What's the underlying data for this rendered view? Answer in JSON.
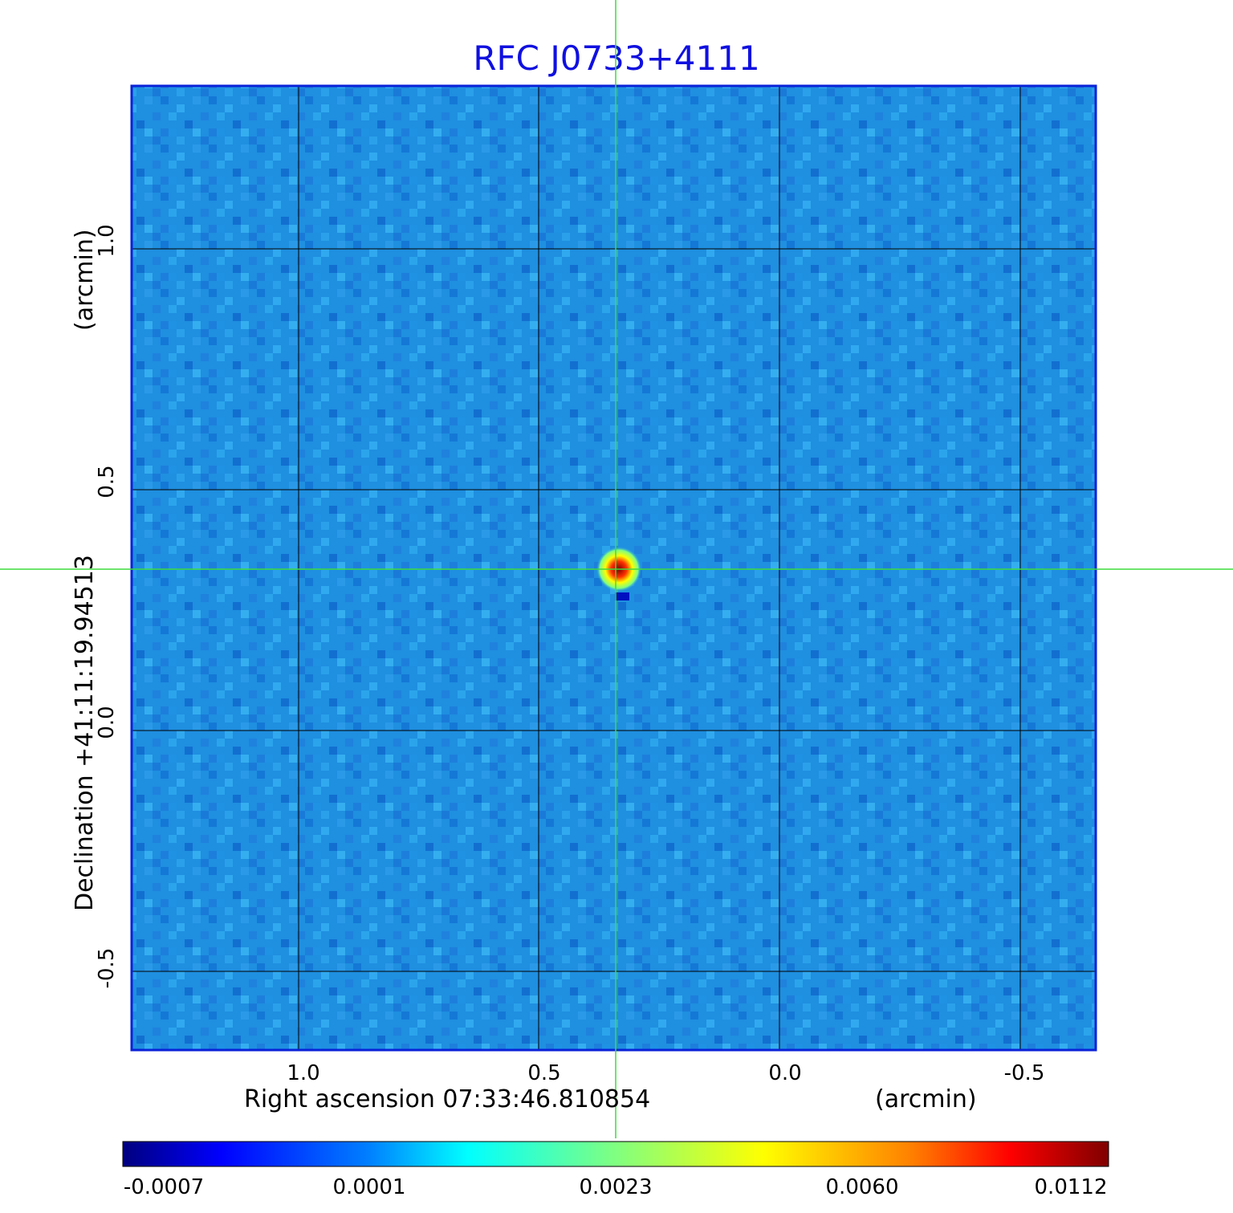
{
  "figure": {
    "title": "RFC J0733+4111",
    "xlabel": "Right ascension  07:33:46.810854",
    "xunit": "(arcmin)",
    "ylabel": "Declination  +41:11:19.94513",
    "yunit": "(arcmin)",
    "x_ticks": [
      "1.0",
      "0.5",
      "0.0",
      "-0.5"
    ],
    "y_ticks": [
      "1.0",
      "0.5",
      "0.0",
      "-0.5"
    ],
    "colorbar_ticks": [
      "-0.0007",
      "0.0001",
      "0.0023",
      "0.0060",
      "0.0112"
    ],
    "frame_color": "#0a22d8",
    "title_color": "#1010e0",
    "crosshair_color": "#3ddc3d",
    "colormap": "jet"
  }
}
